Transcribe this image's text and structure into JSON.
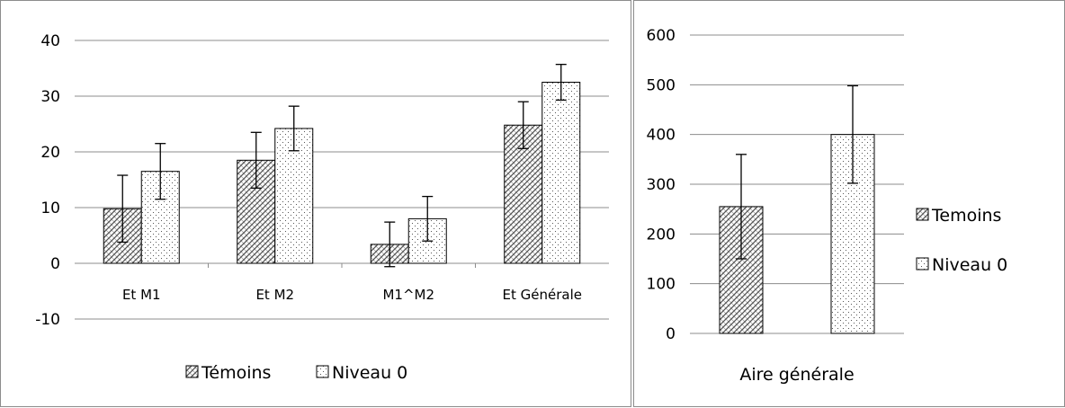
{
  "chart_data": [
    {
      "type": "bar",
      "categories": [
        "Et M1",
        "Et M2",
        "M1^M2",
        "Et Générale"
      ],
      "series": [
        {
          "name": "Témoins",
          "values": [
            9.8,
            18.5,
            3.4,
            24.8
          ],
          "error": [
            6.0,
            5.0,
            4.0,
            4.2
          ],
          "pattern": "crosshatch"
        },
        {
          "name": "Niveau 0",
          "values": [
            16.5,
            24.2,
            8.0,
            32.5
          ],
          "error": [
            5.0,
            4.0,
            4.0,
            3.2
          ],
          "pattern": "dots"
        }
      ],
      "ylim": [
        -10,
        40
      ],
      "yticks": [
        -10,
        0,
        10,
        20,
        30,
        40
      ],
      "xlabel": "",
      "ylabel": "",
      "grid": true,
      "legend": "bottom"
    },
    {
      "type": "bar",
      "categories": [
        "Aire générale"
      ],
      "series": [
        {
          "name": "Temoins",
          "values": [
            255
          ],
          "error": [
            105
          ],
          "pattern": "crosshatch"
        },
        {
          "name": "Niveau 0",
          "values": [
            400
          ],
          "error": [
            98
          ],
          "pattern": "dots"
        }
      ],
      "ylim": [
        0,
        600
      ],
      "yticks": [
        0,
        100,
        200,
        300,
        400,
        500,
        600
      ],
      "xlabel": "",
      "ylabel": "",
      "grid": true,
      "legend": "right"
    }
  ],
  "colors": {
    "bar_stroke": "#000000",
    "grid": "#8c8c8c",
    "pattern_ink": "#555555"
  }
}
